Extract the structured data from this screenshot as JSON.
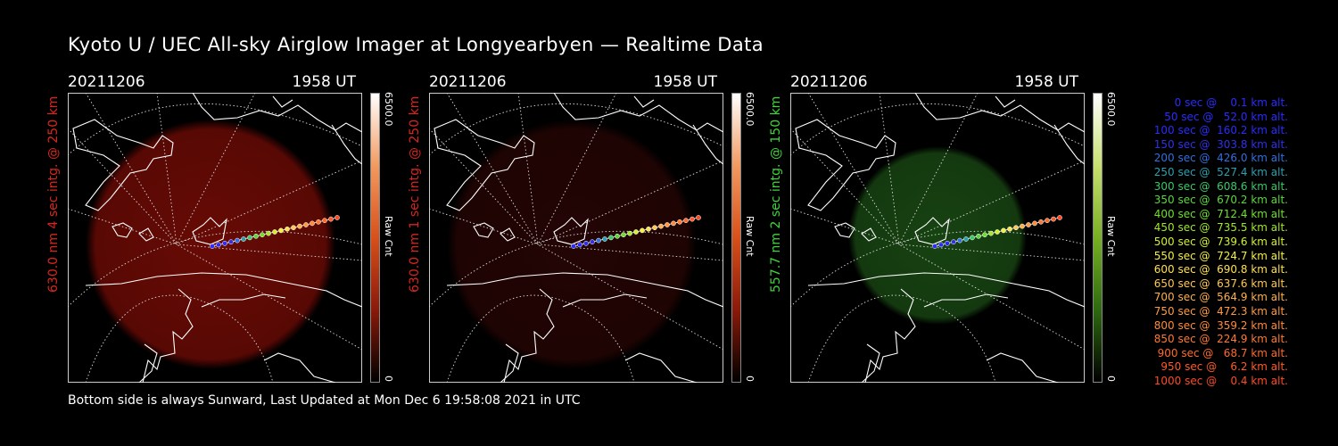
{
  "title": "Kyoto U / UEC All-sky Airglow Imager at Longyearbyen — Realtime Data",
  "footer": "Bottom side is always Sunward, Last Updated at Mon Dec  6 19:58:08 2021 in UTC",
  "panels": [
    {
      "date": "20211206",
      "time": "1958 UT",
      "side_label": "630.0 nm 4 sec intg. @ 250 km",
      "label_color": "#d8261e",
      "colorbar_max": "6500.0",
      "colorbar_min": "0",
      "colorbar_unit": "Raw Cnt",
      "colorbar_colors": [
        "#ffffff",
        "#f29a60",
        "#d8501a",
        "#8a1a0a",
        "#000000"
      ],
      "glow_color": "#7a0c06",
      "glow_opacity": 0.85
    },
    {
      "date": "20211206",
      "time": "1958 UT",
      "side_label": "630.0 nm 1 sec intg. @ 250 km",
      "label_color": "#d8261e",
      "colorbar_max": "6500.0",
      "colorbar_min": "0",
      "colorbar_unit": "Raw Cnt",
      "colorbar_colors": [
        "#ffffff",
        "#f29a60",
        "#d8501a",
        "#8a1a0a",
        "#000000"
      ],
      "glow_color": "#3a0806",
      "glow_opacity": 0.6
    },
    {
      "date": "20211206",
      "time": "1958 UT",
      "side_label": "557.7 nm 2 sec intg. @ 150 km",
      "label_color": "#3fd43a",
      "colorbar_max": "6500.0",
      "colorbar_min": "0",
      "colorbar_unit": "Raw Cnt",
      "colorbar_colors": [
        "#ffffff",
        "#c8e070",
        "#78b022",
        "#2e6a10",
        "#000000"
      ],
      "glow_color": "#1a4a14",
      "glow_opacity": 0.9
    }
  ],
  "trajectory_legend": [
    {
      "text": "   0 sec @    0.1 km alt.",
      "color": "#2b2bff"
    },
    {
      "text": "  50 sec @   52.0 km alt.",
      "color": "#2b2bff"
    },
    {
      "text": " 100 sec @  160.2 km alt.",
      "color": "#2b2bff"
    },
    {
      "text": " 150 sec @  303.8 km alt.",
      "color": "#3030e8"
    },
    {
      "text": " 200 sec @  426.0 km alt.",
      "color": "#2f70e0"
    },
    {
      "text": " 250 sec @  527.4 km alt.",
      "color": "#2aa0b0"
    },
    {
      "text": " 300 sec @  608.6 km alt.",
      "color": "#3ac86a"
    },
    {
      "text": " 350 sec @  670.2 km alt.",
      "color": "#5ad83a"
    },
    {
      "text": " 400 sec @  712.4 km alt.",
      "color": "#6ee02a"
    },
    {
      "text": " 450 sec @  735.5 km alt.",
      "color": "#a0e82a"
    },
    {
      "text": " 500 sec @  739.6 km alt.",
      "color": "#d2f030"
    },
    {
      "text": " 550 sec @  724.7 km alt.",
      "color": "#f5f040"
    },
    {
      "text": " 600 sec @  690.8 km alt.",
      "color": "#ffe050"
    },
    {
      "text": " 650 sec @  637.6 km alt.",
      "color": "#ffc850"
    },
    {
      "text": " 700 sec @  564.9 km alt.",
      "color": "#ffb04a"
    },
    {
      "text": " 750 sec @  472.3 km alt.",
      "color": "#ff9a40"
    },
    {
      "text": " 800 sec @  359.2 km alt.",
      "color": "#ff8a38"
    },
    {
      "text": " 850 sec @  224.9 km alt.",
      "color": "#ff7a30"
    },
    {
      "text": " 900 sec @   68.7 km alt.",
      "color": "#ff6a2a"
    },
    {
      "text": " 950 sec @    6.2 km alt.",
      "color": "#ff5a28"
    },
    {
      "text": "1000 sec @    0.4 km alt.",
      "color": "#ff4a24"
    }
  ]
}
